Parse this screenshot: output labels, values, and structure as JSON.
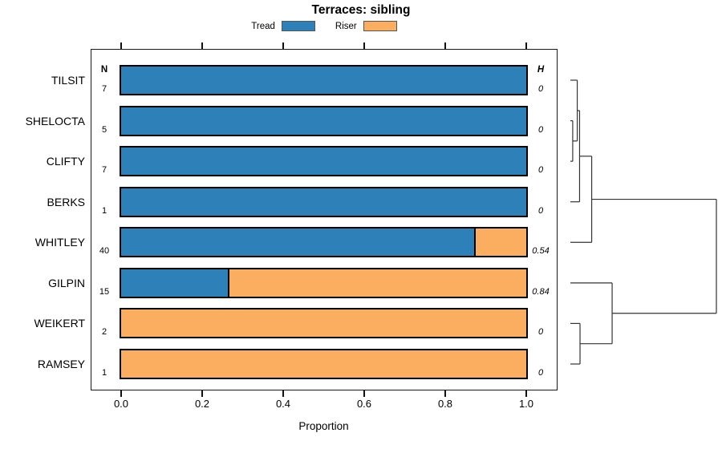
{
  "title": "Terraces: sibling",
  "xlabel": "Proportion",
  "columns": {
    "n": "N",
    "h": "H"
  },
  "colors": {
    "tread": "#2E80B9",
    "riser": "#FBAD60",
    "bar_border": "#000000",
    "dendro_line": "#333333"
  },
  "chart_data": {
    "type": "bar",
    "orientation": "horizontal",
    "stacked": true,
    "title": "Terraces: sibling",
    "xlabel": "Proportion",
    "xlim": [
      0,
      1
    ],
    "x_ticks": [
      0,
      0.2,
      0.4,
      0.6,
      0.8,
      1.0
    ],
    "x_tick_labels": [
      "0.0",
      "0.2",
      "0.4",
      "0.6",
      "0.8",
      "1.0"
    ],
    "legend_position": "top",
    "categories": [
      "TILSIT",
      "SHELOCTA",
      "CLIFTY",
      "BERKS",
      "WHITLEY",
      "GILPIN",
      "WEIKERT",
      "RAMSEY"
    ],
    "series": [
      {
        "name": "Tread",
        "color": "#2E80B9",
        "values": [
          1.0,
          1.0,
          1.0,
          1.0,
          0.875,
          0.267,
          0.0,
          0.0
        ]
      },
      {
        "name": "Riser",
        "color": "#FBAD60",
        "values": [
          0.0,
          0.0,
          0.0,
          0.0,
          0.125,
          0.733,
          1.0,
          1.0
        ]
      }
    ],
    "n_values": [
      "7",
      "5",
      "7",
      "1",
      "40",
      "15",
      "2",
      "1"
    ],
    "h_values": [
      "0",
      "0",
      "0",
      "0",
      "0.54",
      "0.84",
      "0",
      "0"
    ],
    "dendrogram": {
      "leaf_order": [
        "TILSIT",
        "SHELOCTA",
        "CLIFTY",
        "BERKS",
        "WHITLEY",
        "GILPIN",
        "WEIKERT",
        "RAMSEY"
      ],
      "merges": [
        {
          "id": "m1",
          "a": "SHELOCTA",
          "b": "CLIFTY",
          "height": 0.016
        },
        {
          "id": "m2",
          "a": "TILSIT",
          "b": "m1",
          "height": 0.047
        },
        {
          "id": "m3",
          "a": "m2",
          "b": "BERKS",
          "height": 0.063
        },
        {
          "id": "m4",
          "a": "m3",
          "b": "WHITLEY",
          "height": 0.146
        },
        {
          "id": "m5",
          "a": "WEIKERT",
          "b": "RAMSEY",
          "height": 0.066
        },
        {
          "id": "m6",
          "a": "GILPIN",
          "b": "m5",
          "height": 0.286
        },
        {
          "id": "root",
          "a": "m4",
          "b": "m6",
          "height": 1.0
        }
      ]
    }
  }
}
